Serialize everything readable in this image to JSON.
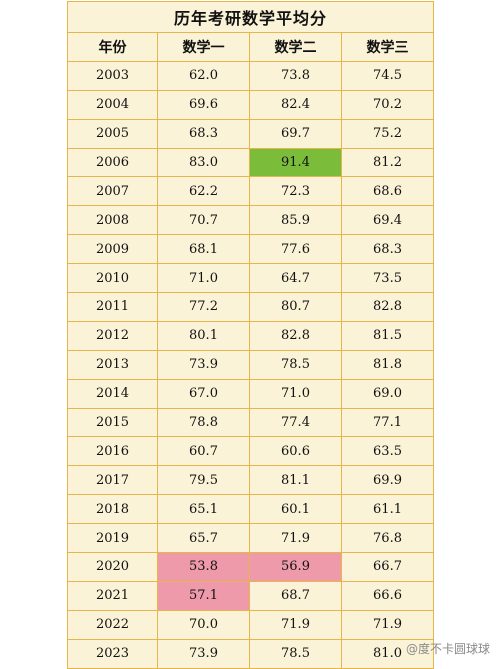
{
  "table": {
    "title": "历年考研数学平均分",
    "headers": [
      "年份",
      "数学一",
      "数学二",
      "数学三"
    ],
    "rows": [
      {
        "year": "2003",
        "m1": "62.0",
        "m2": "73.8",
        "m3": "74.5"
      },
      {
        "year": "2004",
        "m1": "69.6",
        "m2": "82.4",
        "m3": "70.2"
      },
      {
        "year": "2005",
        "m1": "68.3",
        "m2": "69.7",
        "m3": "75.2"
      },
      {
        "year": "2006",
        "m1": "83.0",
        "m2": "91.4",
        "m3": "81.2"
      },
      {
        "year": "2007",
        "m1": "62.2",
        "m2": "72.3",
        "m3": "68.6"
      },
      {
        "year": "2008",
        "m1": "70.7",
        "m2": "85.9",
        "m3": "69.4"
      },
      {
        "year": "2009",
        "m1": "68.1",
        "m2": "77.6",
        "m3": "68.3"
      },
      {
        "year": "2010",
        "m1": "71.0",
        "m2": "64.7",
        "m3": "73.5"
      },
      {
        "year": "2011",
        "m1": "77.2",
        "m2": "80.7",
        "m3": "82.8"
      },
      {
        "year": "2012",
        "m1": "80.1",
        "m2": "82.8",
        "m3": "81.5"
      },
      {
        "year": "2013",
        "m1": "73.9",
        "m2": "78.5",
        "m3": "81.8"
      },
      {
        "year": "2014",
        "m1": "67.0",
        "m2": "71.0",
        "m3": "69.0"
      },
      {
        "year": "2015",
        "m1": "78.8",
        "m2": "77.4",
        "m3": "77.1"
      },
      {
        "year": "2016",
        "m1": "60.7",
        "m2": "60.6",
        "m3": "63.5"
      },
      {
        "year": "2017",
        "m1": "79.5",
        "m2": "81.1",
        "m3": "69.9"
      },
      {
        "year": "2018",
        "m1": "65.1",
        "m2": "60.1",
        "m3": "61.1"
      },
      {
        "year": "2019",
        "m1": "65.7",
        "m2": "71.9",
        "m3": "76.8"
      },
      {
        "year": "2020",
        "m1": "53.8",
        "m2": "56.9",
        "m3": "66.7"
      },
      {
        "year": "2021",
        "m1": "57.1",
        "m2": "68.7",
        "m3": "66.6"
      },
      {
        "year": "2022",
        "m1": "70.0",
        "m2": "71.9",
        "m3": "71.9"
      },
      {
        "year": "2023",
        "m1": "73.9",
        "m2": "78.5",
        "m3": "81.0"
      }
    ]
  },
  "highlights": {
    "green_color": "#7bbd3a",
    "pink_color": "#ee9aab"
  },
  "watermark": "@度不卡圆球球"
}
